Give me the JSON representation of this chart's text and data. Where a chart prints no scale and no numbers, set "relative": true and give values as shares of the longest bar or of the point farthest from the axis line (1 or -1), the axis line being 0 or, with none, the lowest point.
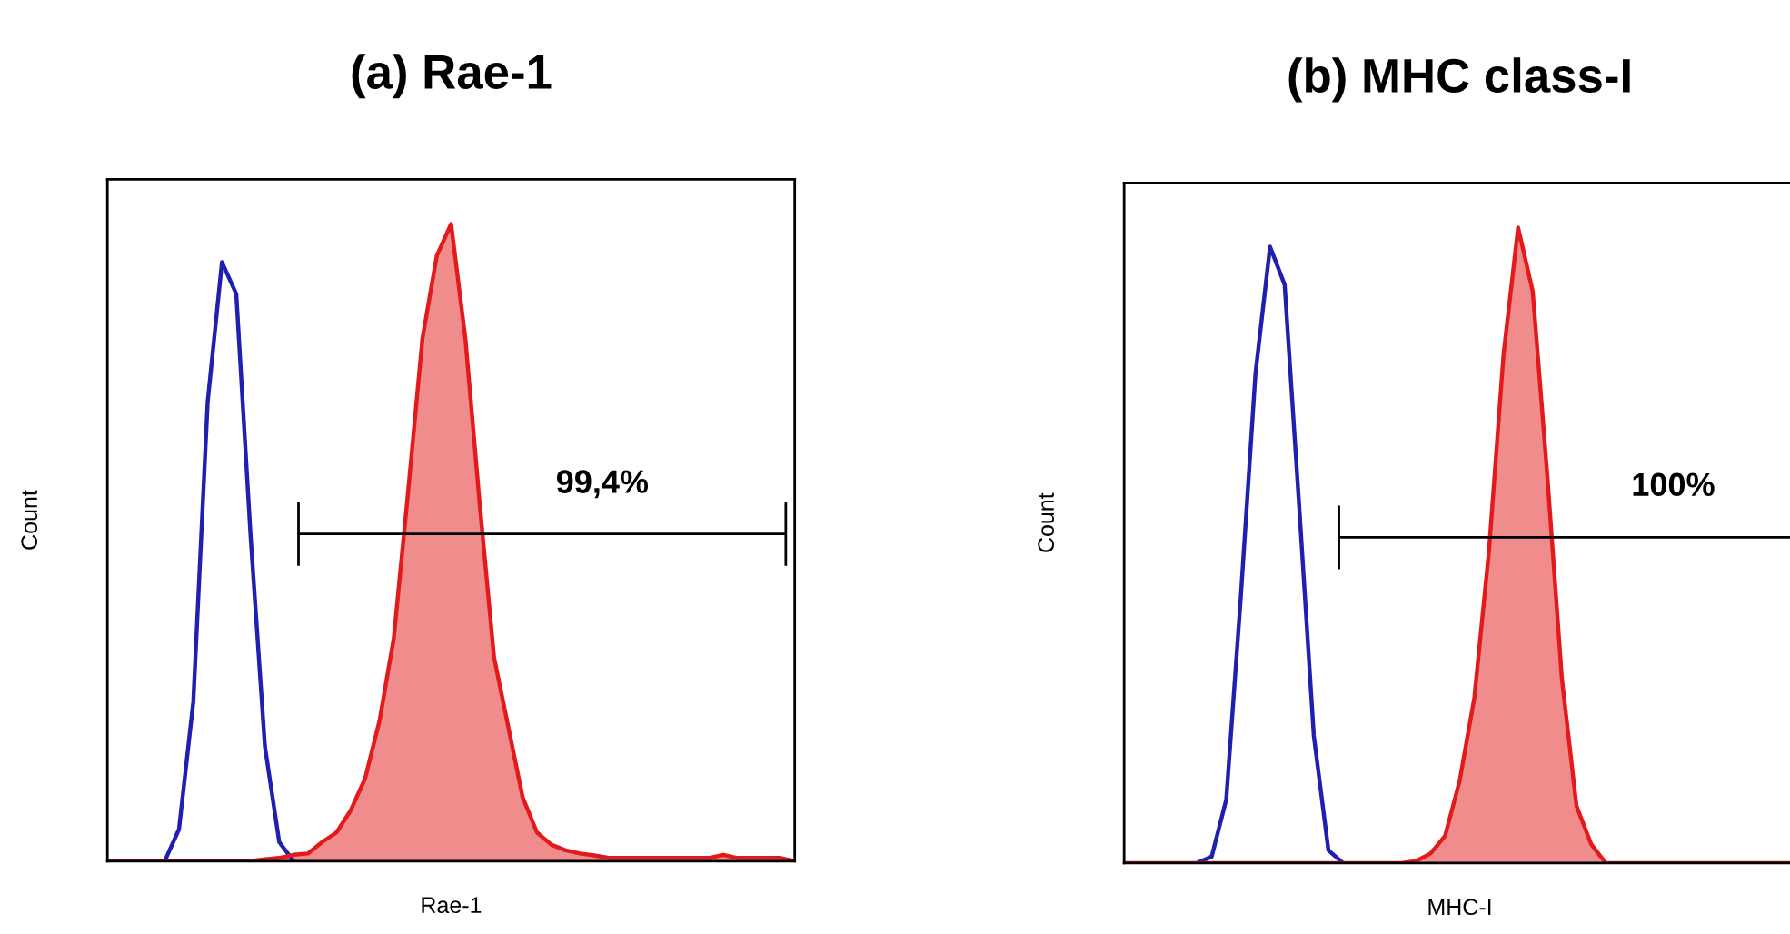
{
  "chart_data": [
    {
      "type": "area",
      "title": "(a) Rae-1",
      "xlabel": "Rae-1",
      "ylabel": "Count",
      "relative": true,
      "tick_labels": false,
      "categories": [
        null,
        null,
        null,
        null,
        null,
        null,
        null,
        null,
        null,
        null,
        null,
        null,
        null,
        null,
        null,
        null,
        null,
        null,
        null,
        null,
        null,
        null,
        null,
        null,
        null,
        null,
        null,
        null,
        null,
        null,
        null,
        null,
        null,
        null,
        null,
        null,
        null,
        null,
        null,
        null,
        null,
        null,
        null,
        null,
        null,
        null,
        null,
        null,
        null
      ],
      "annotations": [
        "99,4%"
      ],
      "series": [
        {
          "type": "line",
          "color": "#1f1fb0",
          "values": [
            null,
            null,
            null,
            null,
            0,
            0.05,
            0.25,
            0.72,
            0.94,
            0.89,
            0.51,
            0.18,
            0.03,
            0,
            null,
            null,
            null,
            null,
            null,
            null,
            null,
            null,
            null,
            null,
            null,
            null,
            null,
            null,
            null,
            null,
            null,
            null,
            null,
            null,
            null,
            null,
            null,
            null,
            null,
            null,
            null,
            null,
            null,
            null,
            null,
            null,
            null,
            null,
            null
          ]
        },
        {
          "color": "#e31a1c",
          "values": [
            0,
            0,
            0,
            0,
            0,
            0,
            0,
            0,
            0,
            0,
            0,
            0.003,
            0.005,
            0.01,
            0.012,
            0.03,
            0.045,
            0.08,
            0.13,
            0.22,
            0.35,
            0.58,
            0.82,
            0.95,
            1,
            0.82,
            0.56,
            0.32,
            0.21,
            0.1,
            0.045,
            0.026,
            0.017,
            0.012,
            0.009,
            0.005,
            0.005,
            0.005,
            0.005,
            0.005,
            0.005,
            0.005,
            0.005,
            0.01,
            0.005,
            0.005,
            0.005,
            0.005,
            0
          ]
        }
      ]
    },
    {
      "type": "area",
      "title": "(b) MHC class-I",
      "xlabel": "MHC-I",
      "ylabel": "Count",
      "relative": true,
      "tick_labels": false,
      "categories": [
        null,
        null,
        null,
        null,
        null,
        null,
        null,
        null,
        null,
        null,
        null,
        null,
        null,
        null,
        null,
        null,
        null,
        null,
        null,
        null,
        null,
        null,
        null,
        null,
        null,
        null,
        null,
        null,
        null,
        null,
        null,
        null,
        null,
        null,
        null,
        null,
        null,
        null,
        null,
        null,
        null,
        null,
        null,
        null,
        null,
        null,
        null
      ],
      "annotations": [
        "100%"
      ],
      "series": [
        {
          "type": "line",
          "color": "#1f1fb0",
          "values": [
            null,
            null,
            null,
            null,
            null,
            0,
            0.01,
            0.1,
            0.42,
            0.77,
            0.97,
            0.91,
            0.56,
            0.2,
            0.02,
            0,
            null,
            null,
            null,
            null,
            null,
            null,
            null,
            null,
            null,
            null,
            null,
            null,
            null,
            null,
            null,
            null,
            null,
            null,
            null,
            null,
            null,
            null,
            null,
            null,
            null,
            null,
            null,
            null,
            null,
            null,
            null
          ]
        },
        {
          "color": "#e31a1c",
          "values": [
            0,
            0,
            0,
            0,
            0,
            0,
            0,
            0,
            0,
            0,
            0,
            0,
            0,
            0,
            0,
            0,
            0,
            0,
            0,
            0,
            0.003,
            0.015,
            0.043,
            0.13,
            0.26,
            0.49,
            0.8,
            1,
            0.9,
            0.61,
            0.29,
            0.09,
            0.03,
            0,
            0,
            0,
            0,
            0,
            0,
            0,
            0,
            0,
            0,
            0,
            0,
            0,
            0
          ]
        }
      ]
    }
  ]
}
